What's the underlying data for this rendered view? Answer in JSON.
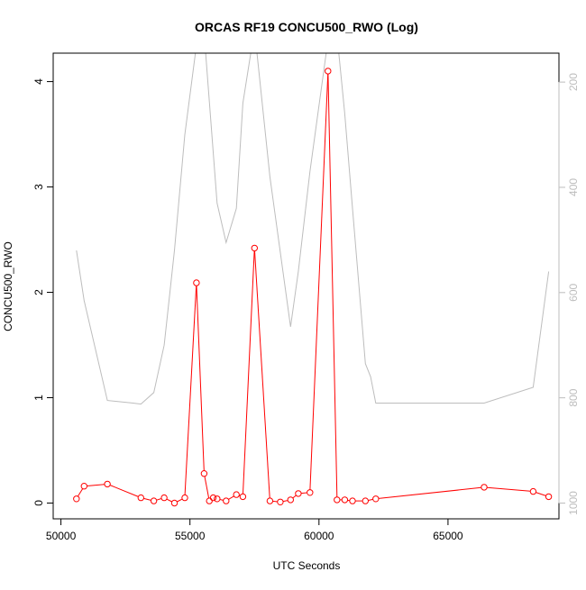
{
  "chart_data": {
    "type": "line",
    "title": "ORCAS RF19 CONCU500_RWO (Log)",
    "xlabel": "UTC Seconds",
    "ylabel": "CONCU500_RWO",
    "xlim": [
      49700,
      69300
    ],
    "ylim": [
      -0.15,
      4.27
    ],
    "y2lim": [
      1030,
      145
    ],
    "x_ticks": [
      50000,
      55000,
      60000,
      65000
    ],
    "y_ticks": [
      0,
      1,
      2,
      3,
      4
    ],
    "y2_ticks": [
      200,
      400,
      600,
      800,
      1000
    ],
    "colors": {
      "series": "#ff0000",
      "secondary": "#bdbdbd",
      "axis": "#000000"
    },
    "series": [
      {
        "style": "line+open-circle",
        "color": "#ff0000",
        "x": [
          50600,
          50900,
          51800,
          53100,
          53600,
          54000,
          54400,
          54800,
          55250,
          55550,
          55750,
          55900,
          56050,
          56400,
          56800,
          57050,
          57500,
          58100,
          58500,
          58900,
          59200,
          59650,
          60350,
          60700,
          61000,
          61300,
          61800,
          62200,
          66400,
          68300,
          68900
        ],
        "y": [
          0.04,
          0.16,
          0.18,
          0.05,
          0.02,
          0.05,
          0.0,
          0.05,
          2.09,
          0.28,
          0.02,
          0.05,
          0.04,
          0.02,
          0.08,
          0.06,
          2.42,
          0.02,
          0.01,
          0.03,
          0.09,
          0.1,
          4.1,
          0.03,
          0.03,
          0.02,
          0.02,
          0.04,
          0.15,
          0.11,
          0.06
        ]
      },
      {
        "axis": "right",
        "color": "#bdbdbd",
        "x": [
          50600,
          50900,
          51800,
          52800,
          53100,
          53600,
          54000,
          54400,
          54800,
          55250,
          55600,
          56050,
          56400,
          56800,
          57050,
          57500,
          58100,
          58900,
          59200,
          59650,
          60350,
          60700,
          61000,
          61300,
          61800,
          62000,
          62200,
          66400,
          68300,
          68900
        ],
        "y": [
          520,
          615,
          805,
          810,
          812,
          790,
          700,
          520,
          300,
          130,
          140,
          430,
          505,
          440,
          240,
          100,
          380,
          665,
          560,
          370,
          120,
          110,
          260,
          440,
          735,
          760,
          810,
          810,
          780,
          560
        ]
      }
    ]
  }
}
